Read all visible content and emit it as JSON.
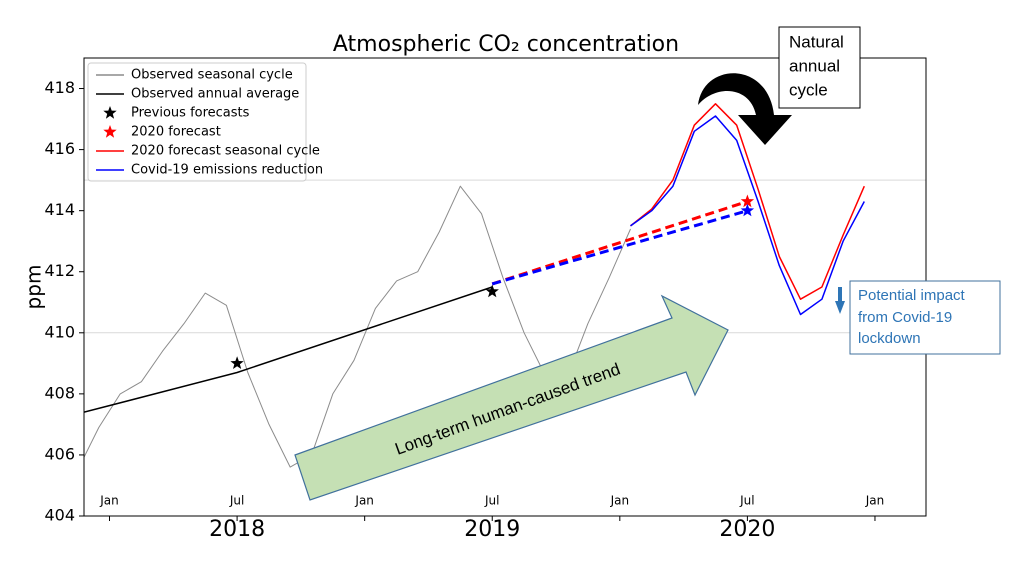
{
  "chart_data": {
    "type": "line",
    "title": "Atmospheric CO₂ concentration",
    "ylabel": "ppm",
    "xlim": [
      2017.9,
      2021.2
    ],
    "ylim": [
      404,
      419
    ],
    "xticks": [
      {
        "value": 2018,
        "label": "Jan"
      },
      {
        "value": 2018.5,
        "label": "Jul"
      },
      {
        "value": 2019,
        "label": "Jan"
      },
      {
        "value": 2019.5,
        "label": "Jul"
      },
      {
        "value": 2020,
        "label": "Jan"
      },
      {
        "value": 2020.5,
        "label": "Jul"
      },
      {
        "value": 2021,
        "label": "Jan"
      }
    ],
    "year_labels": [
      {
        "value": 2018.5,
        "label": "2018"
      },
      {
        "value": 2019.5,
        "label": "2019"
      },
      {
        "value": 2020.5,
        "label": "2020"
      }
    ],
    "yticks": [
      404,
      406,
      408,
      410,
      412,
      414,
      416,
      418
    ],
    "hlines": [
      410,
      415
    ],
    "legend_loc": "upper left",
    "series": [
      {
        "name": "Observed seasonal cycle",
        "color": "#8c8c8c",
        "marker": "line",
        "x": [
          2017.875,
          2017.958,
          2018.042,
          2018.125,
          2018.208,
          2018.292,
          2018.375,
          2018.458,
          2018.542,
          2018.625,
          2018.708,
          2018.792,
          2018.875,
          2018.958,
          2019.042,
          2019.125,
          2019.208,
          2019.292,
          2019.375,
          2019.458,
          2019.542,
          2019.625,
          2019.708,
          2019.792,
          2019.875,
          2019.958,
          2020.042
        ],
        "values": [
          405.5,
          406.9,
          408.0,
          408.4,
          409.4,
          410.3,
          411.3,
          410.9,
          408.7,
          407.0,
          405.6,
          406.0,
          408.0,
          409.1,
          410.8,
          411.7,
          412.0,
          413.3,
          414.8,
          413.9,
          411.8,
          410.0,
          408.6,
          408.5,
          410.3,
          411.8,
          413.4
        ]
      },
      {
        "name": "Observed annual average",
        "color": "#000000",
        "marker": "line",
        "x": [
          2017.9,
          2018.5,
          2019.5
        ],
        "values": [
          407.4,
          408.7,
          411.5
        ]
      },
      {
        "name": "Previous forecasts",
        "color": "#000000",
        "marker": "star",
        "x": [
          2018.5,
          2019.5
        ],
        "values": [
          409.0,
          411.35
        ]
      },
      {
        "name": "2020 forecast",
        "color": "#ff0000",
        "marker": "star",
        "x": [
          2020.5
        ],
        "values": [
          414.3
        ]
      },
      {
        "name": "2020 forecast seasonal cycle",
        "color": "#ff0000",
        "marker": "line",
        "x": [
          2020.042,
          2020.125,
          2020.208,
          2020.292,
          2020.375,
          2020.458,
          2020.542,
          2020.625,
          2020.708,
          2020.792,
          2020.875,
          2020.958
        ],
        "values": [
          413.5,
          414.05,
          415.0,
          416.8,
          417.5,
          416.8,
          414.7,
          412.5,
          411.1,
          411.5,
          413.2,
          414.8
        ]
      },
      {
        "name": "Covid-19 emissions reduction",
        "color": "#0000ff",
        "marker": "line",
        "x": [
          2020.042,
          2020.125,
          2020.208,
          2020.292,
          2020.375,
          2020.458,
          2020.542,
          2020.625,
          2020.708,
          2020.792,
          2020.875,
          2020.958
        ],
        "values": [
          413.5,
          414.0,
          414.8,
          416.6,
          417.1,
          416.3,
          414.3,
          412.2,
          410.6,
          411.1,
          413.0,
          414.3
        ]
      }
    ],
    "trend_lines": [
      {
        "color": "#ff0000",
        "x": [
          2019.5,
          2020.5
        ],
        "values": [
          411.6,
          414.3
        ]
      },
      {
        "color": "#0000ff",
        "x": [
          2019.5,
          2020.5
        ],
        "values": [
          411.6,
          414.0
        ]
      }
    ],
    "covid_forecast": {
      "color": "#0000ff",
      "x": [
        2020.5
      ],
      "values": [
        414.0
      ]
    },
    "annotations": {
      "trend": "Long-term human-caused trend",
      "natural_cycle": [
        "Natural",
        "annual",
        "cycle"
      ],
      "impact": [
        "Potential impact",
        "from Covid-19",
        "lockdown"
      ]
    }
  }
}
